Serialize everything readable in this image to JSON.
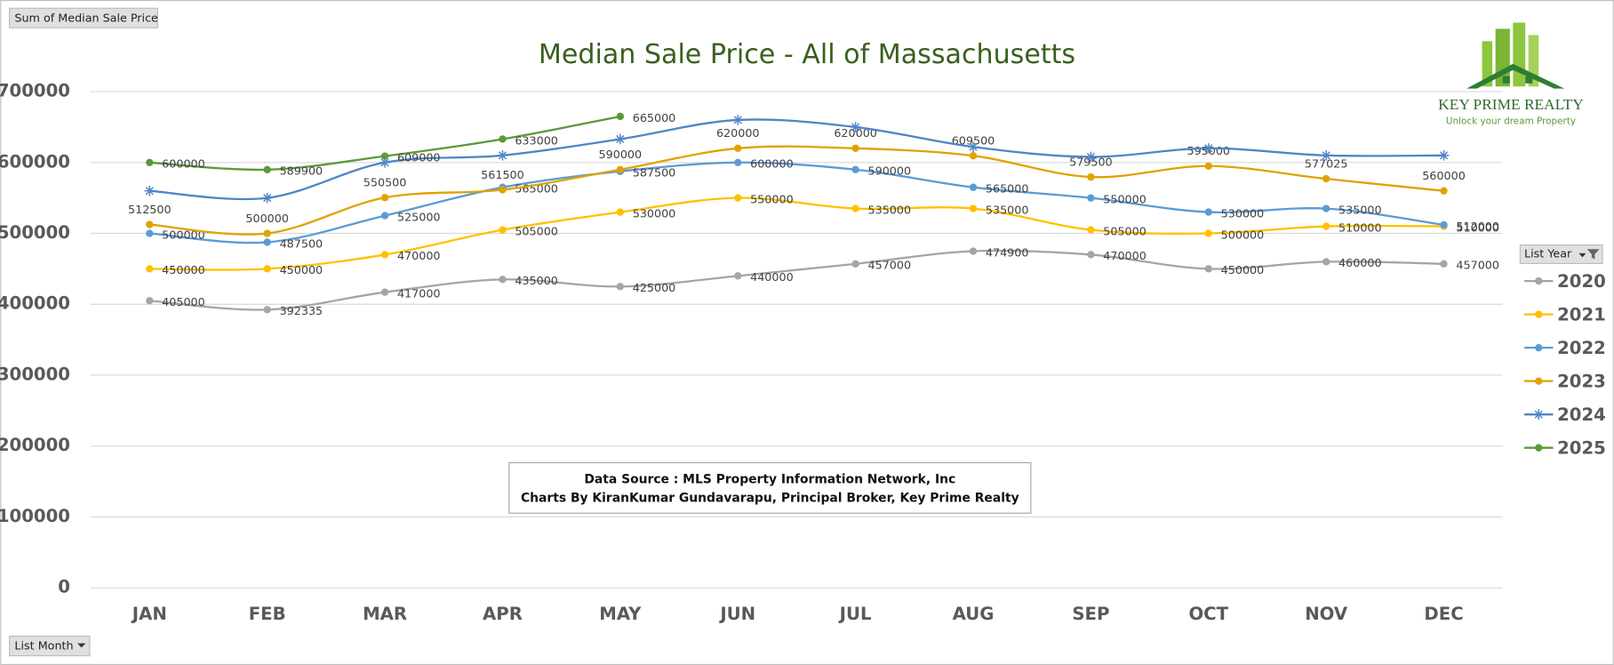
{
  "chart_data": {
    "type": "line",
    "title": "Median Sale Price - All of Massachusetts",
    "field_button": "Sum of Median Sale Price",
    "axis_button": "List Month",
    "legend_title": "List Year",
    "legend": "right",
    "grid": true,
    "smooth": true,
    "categories": [
      "JAN",
      "FEB",
      "MAR",
      "APR",
      "MAY",
      "JUN",
      "JUL",
      "AUG",
      "SEP",
      "OCT",
      "NOV",
      "DEC"
    ],
    "ylim": [
      0,
      700000
    ],
    "yticks": [
      0,
      100000,
      200000,
      300000,
      400000,
      500000,
      600000,
      700000
    ],
    "series": [
      {
        "name": "2020",
        "color": "#a5a5a5",
        "marker": "circle",
        "show_labels": true,
        "label_position": "right",
        "values": [
          405000,
          392335,
          417000,
          435000,
          425000,
          440000,
          457000,
          474900,
          470000,
          450000,
          460000,
          457000
        ]
      },
      {
        "name": "2021",
        "color": "#ffc000",
        "marker": "circle",
        "show_labels": true,
        "label_position": "right",
        "values": [
          450000,
          450000,
          470000,
          505000,
          530000,
          550000,
          535000,
          535000,
          505000,
          500000,
          510000,
          510000
        ]
      },
      {
        "name": "2022",
        "color": "#5b9bd5",
        "marker": "circle",
        "show_labels": true,
        "label_position": "right",
        "values": [
          500000,
          487500,
          525000,
          565000,
          587500,
          600000,
          590000,
          565000,
          550000,
          530000,
          535000,
          512000
        ]
      },
      {
        "name": "2023",
        "color": "#e0a200",
        "marker": "circle",
        "show_labels": true,
        "label_position": "above",
        "values": [
          512500,
          500000,
          550500,
          561500,
          590000,
          620000,
          620000,
          609500,
          579500,
          595000,
          577025,
          560000
        ]
      },
      {
        "name": "2024",
        "color": "#4f86c6",
        "marker": "star",
        "show_labels": false,
        "label_position": "above",
        "values": [
          560000,
          550000,
          600000,
          610000,
          633000,
          660000,
          650000,
          622000,
          608000,
          620000,
          610000,
          610000
        ]
      },
      {
        "name": "2025",
        "color": "#5a9a3a",
        "marker": "circle",
        "show_labels": true,
        "label_position": "right",
        "values": [
          600000,
          589900,
          609000,
          633000,
          665000,
          null,
          null,
          null,
          null,
          null,
          null,
          null
        ]
      }
    ],
    "annotation": [
      "Data Source : MLS Property Information Network, Inc",
      "Charts By KiranKumar Gundavarapu, Principal Broker, Key Prime Realty"
    ],
    "logo": {
      "name": "Key Prime Realty",
      "tagline": "Unlock your dream Property"
    }
  }
}
